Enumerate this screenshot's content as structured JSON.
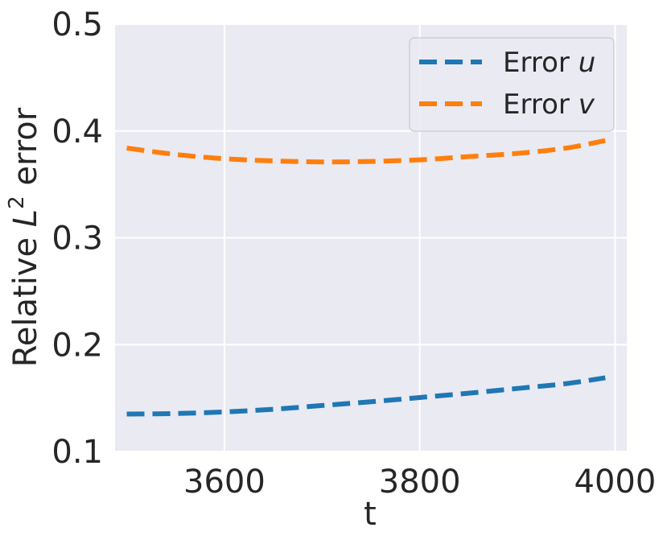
{
  "chart_data": {
    "type": "line",
    "xlabel": "t",
    "ylabel_prefix": "Relative ",
    "ylabel_var": "L",
    "ylabel_sup": "2",
    "ylabel_suffix": " error",
    "xlim": [
      3488,
      4012
    ],
    "ylim": [
      0.1,
      0.5
    ],
    "xticks": [
      3600,
      3800,
      4000
    ],
    "xtick_labels": [
      "3600",
      "3800",
      "4000"
    ],
    "yticks": [
      0.1,
      0.2,
      0.3,
      0.4,
      0.5
    ],
    "ytick_labels": [
      "0.1",
      "0.2",
      "0.3",
      "0.4",
      "0.5"
    ],
    "grid": true,
    "legend_position": "top-right",
    "series": [
      {
        "name_prefix": "Error ",
        "name_var": "u",
        "color": "#1f77b4",
        "x": [
          3500,
          3550,
          3600,
          3650,
          3700,
          3750,
          3800,
          3850,
          3900,
          3950,
          3990
        ],
        "y": [
          0.135,
          0.1355,
          0.137,
          0.1395,
          0.143,
          0.1465,
          0.1505,
          0.1545,
          0.159,
          0.1635,
          0.169
        ]
      },
      {
        "name_prefix": "Error ",
        "name_var": "v",
        "color": "#ff7f0e",
        "x": [
          3500,
          3550,
          3600,
          3650,
          3700,
          3750,
          3800,
          3850,
          3900,
          3950,
          3990
        ],
        "y": [
          0.384,
          0.378,
          0.374,
          0.372,
          0.371,
          0.3715,
          0.373,
          0.376,
          0.379,
          0.384,
          0.391
        ]
      }
    ]
  }
}
